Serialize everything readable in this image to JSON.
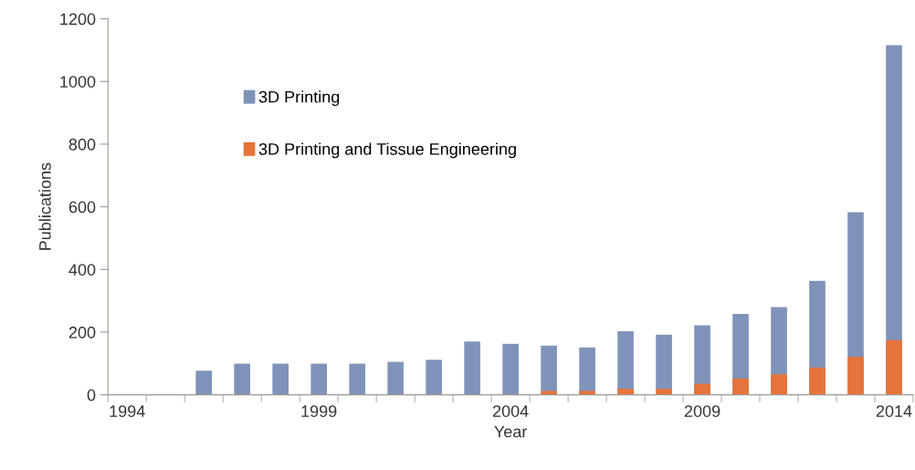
{
  "chart_data": {
    "type": "bar",
    "xlabel": "Year",
    "ylabel": "Publications",
    "categories": [
      "1994",
      null,
      null,
      null,
      null,
      "1999",
      null,
      null,
      null,
      null,
      "2004",
      null,
      null,
      null,
      null,
      "2009",
      null,
      null,
      null,
      null,
      "2014"
    ],
    "series": [
      {
        "name": "3D Printing",
        "color": "#7f93b9",
        "values": [
          null,
          null,
          77,
          99,
          99,
          99,
          99,
          105,
          112,
          170,
          163,
          157,
          151,
          203,
          192,
          222,
          258,
          280,
          364,
          583,
          1116
        ]
      },
      {
        "name": "3D Printing and Tissue Engineering",
        "color": "#e5743a",
        "values": [
          null,
          null,
          null,
          null,
          null,
          null,
          null,
          null,
          null,
          null,
          2,
          13,
          13,
          19,
          19,
          35,
          52,
          65,
          87,
          121,
          174
        ]
      }
    ],
    "ylim": [
      0,
      1200
    ],
    "yticks": [
      0,
      200,
      400,
      600,
      800,
      1000,
      1200
    ],
    "grid": false,
    "legend": "top left"
  }
}
